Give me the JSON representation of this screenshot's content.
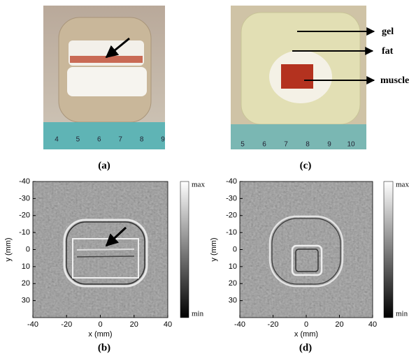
{
  "panels": [
    {
      "label": "(a)",
      "ruler_labels": [
        4,
        5,
        6,
        7,
        8,
        9
      ]
    },
    {
      "label": "(b)",
      "x_label": "x (mm)",
      "y_label": "y (mm)",
      "xlim": [
        -40,
        40
      ],
      "ylim": [
        -40,
        40
      ],
      "xticks": [
        -40,
        -20,
        0,
        20,
        40
      ],
      "yticks": [
        -40,
        -30,
        -20,
        -10,
        0,
        10,
        20,
        30
      ],
      "colorbar": {
        "top_label": "max",
        "bottom_label": "min"
      }
    },
    {
      "label": "(c)",
      "ruler_labels": [
        5,
        6,
        7,
        8,
        9,
        10
      ],
      "annotations": [
        "gel",
        "fat",
        "muscle"
      ]
    },
    {
      "label": "(d)",
      "x_label": "x (mm)",
      "y_label": "y (mm)",
      "xlim": [
        -40,
        40
      ],
      "ylim": [
        -40,
        40
      ],
      "xticks": [
        -40,
        -20,
        0,
        20,
        40
      ],
      "yticks": [
        -40,
        -30,
        -20,
        -10,
        0,
        10,
        20,
        30
      ],
      "colorbar": {
        "top_label": "max",
        "bottom_label": "min"
      }
    }
  ]
}
